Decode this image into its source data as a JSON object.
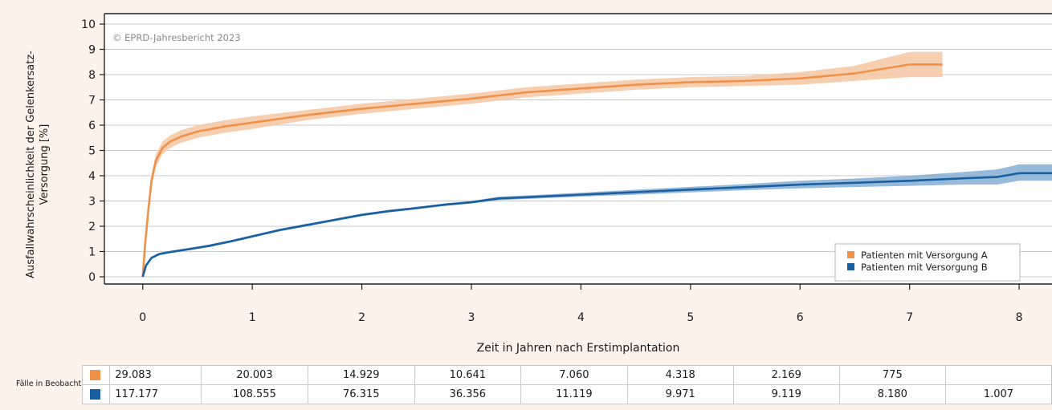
{
  "chart_data": {
    "type": "line",
    "xlabel": "Zeit in Jahren nach Erstimplantation",
    "ylabel": "Ausfallwahrscheinlichkeit der Gelenkersatz-Versorgung [%]",
    "xlim": [
      -0.35,
      8.3
    ],
    "ylim": [
      0,
      10
    ],
    "x_ticks": [
      "0",
      "1",
      "2",
      "3",
      "4",
      "5",
      "6",
      "7",
      "8"
    ],
    "y_ticks": [
      "0",
      "1",
      "2",
      "3",
      "4",
      "5",
      "6",
      "7",
      "8",
      "9",
      "10"
    ],
    "grid": "horizontal",
    "watermark": "© EPRD-Jahresbericht 2023",
    "legend_position": "bottom-right",
    "series": [
      {
        "name": "Patienten mit Versorgung A",
        "color": "#f0914a",
        "band_color": "#f4c7a3",
        "x": [
          0,
          0.02,
          0.05,
          0.08,
          0.12,
          0.18,
          0.25,
          0.35,
          0.5,
          0.75,
          1.0,
          1.5,
          2.0,
          2.5,
          3.0,
          3.5,
          4.0,
          4.5,
          5.0,
          5.5,
          6.0,
          6.5,
          7.0,
          7.3
        ],
        "y": [
          0,
          1.2,
          2.6,
          3.8,
          4.6,
          5.1,
          5.35,
          5.55,
          5.75,
          5.95,
          6.1,
          6.4,
          6.65,
          6.85,
          7.05,
          7.3,
          7.45,
          7.6,
          7.7,
          7.75,
          7.85,
          8.05,
          8.4,
          8.4
        ],
        "ci_lower": [
          0,
          1.05,
          2.4,
          3.55,
          4.35,
          4.85,
          5.1,
          5.3,
          5.5,
          5.7,
          5.85,
          6.2,
          6.45,
          6.65,
          6.85,
          7.1,
          7.25,
          7.4,
          7.5,
          7.55,
          7.6,
          7.75,
          7.9,
          7.9
        ],
        "ci_upper": [
          0,
          1.35,
          2.8,
          4.05,
          4.85,
          5.35,
          5.6,
          5.8,
          6.0,
          6.2,
          6.35,
          6.6,
          6.85,
          7.05,
          7.25,
          7.5,
          7.65,
          7.8,
          7.9,
          7.95,
          8.1,
          8.35,
          8.9,
          8.9
        ]
      },
      {
        "name": "Patienten mit Versorgung B",
        "color": "#1a5fa0",
        "band_color": "#86aed4",
        "x": [
          0,
          0.03,
          0.08,
          0.15,
          0.25,
          0.4,
          0.6,
          0.8,
          1.0,
          1.25,
          1.5,
          1.75,
          2.0,
          2.25,
          2.5,
          2.75,
          3.0,
          3.25,
          3.5,
          4.0,
          4.5,
          5.0,
          5.5,
          6.0,
          6.5,
          7.0,
          7.5,
          7.8,
          8.0,
          8.3
        ],
        "y": [
          0,
          0.45,
          0.75,
          0.9,
          0.98,
          1.08,
          1.22,
          1.4,
          1.6,
          1.85,
          2.05,
          2.25,
          2.45,
          2.6,
          2.72,
          2.85,
          2.95,
          3.1,
          3.15,
          3.25,
          3.35,
          3.45,
          3.55,
          3.65,
          3.72,
          3.8,
          3.9,
          3.95,
          4.1,
          4.1
        ],
        "ci_lower": [
          0,
          0.4,
          0.7,
          0.85,
          0.93,
          1.03,
          1.17,
          1.35,
          1.55,
          1.8,
          2.0,
          2.2,
          2.4,
          2.55,
          2.67,
          2.8,
          2.9,
          3.03,
          3.08,
          3.17,
          3.25,
          3.34,
          3.43,
          3.5,
          3.55,
          3.6,
          3.65,
          3.65,
          3.8,
          3.8
        ],
        "ci_upper": [
          0,
          0.5,
          0.8,
          0.95,
          1.03,
          1.13,
          1.27,
          1.45,
          1.65,
          1.9,
          2.1,
          2.3,
          2.5,
          2.65,
          2.77,
          2.9,
          3.0,
          3.17,
          3.22,
          3.33,
          3.45,
          3.56,
          3.67,
          3.8,
          3.89,
          4.0,
          4.15,
          4.25,
          4.45,
          4.45
        ]
      }
    ]
  },
  "risk_table": {
    "label": "Fälle in Beobachtung",
    "rows": [
      {
        "color": "#f0914a",
        "values": [
          "29.083",
          "20.003",
          "14.929",
          "10.641",
          "7.060",
          "4.318",
          "2.169",
          "775",
          ""
        ]
      },
      {
        "color": "#1a5fa0",
        "values": [
          "117.177",
          "108.555",
          "76.315",
          "36.356",
          "11.119",
          "9.971",
          "9.119",
          "8.180",
          "1.007"
        ]
      }
    ]
  }
}
